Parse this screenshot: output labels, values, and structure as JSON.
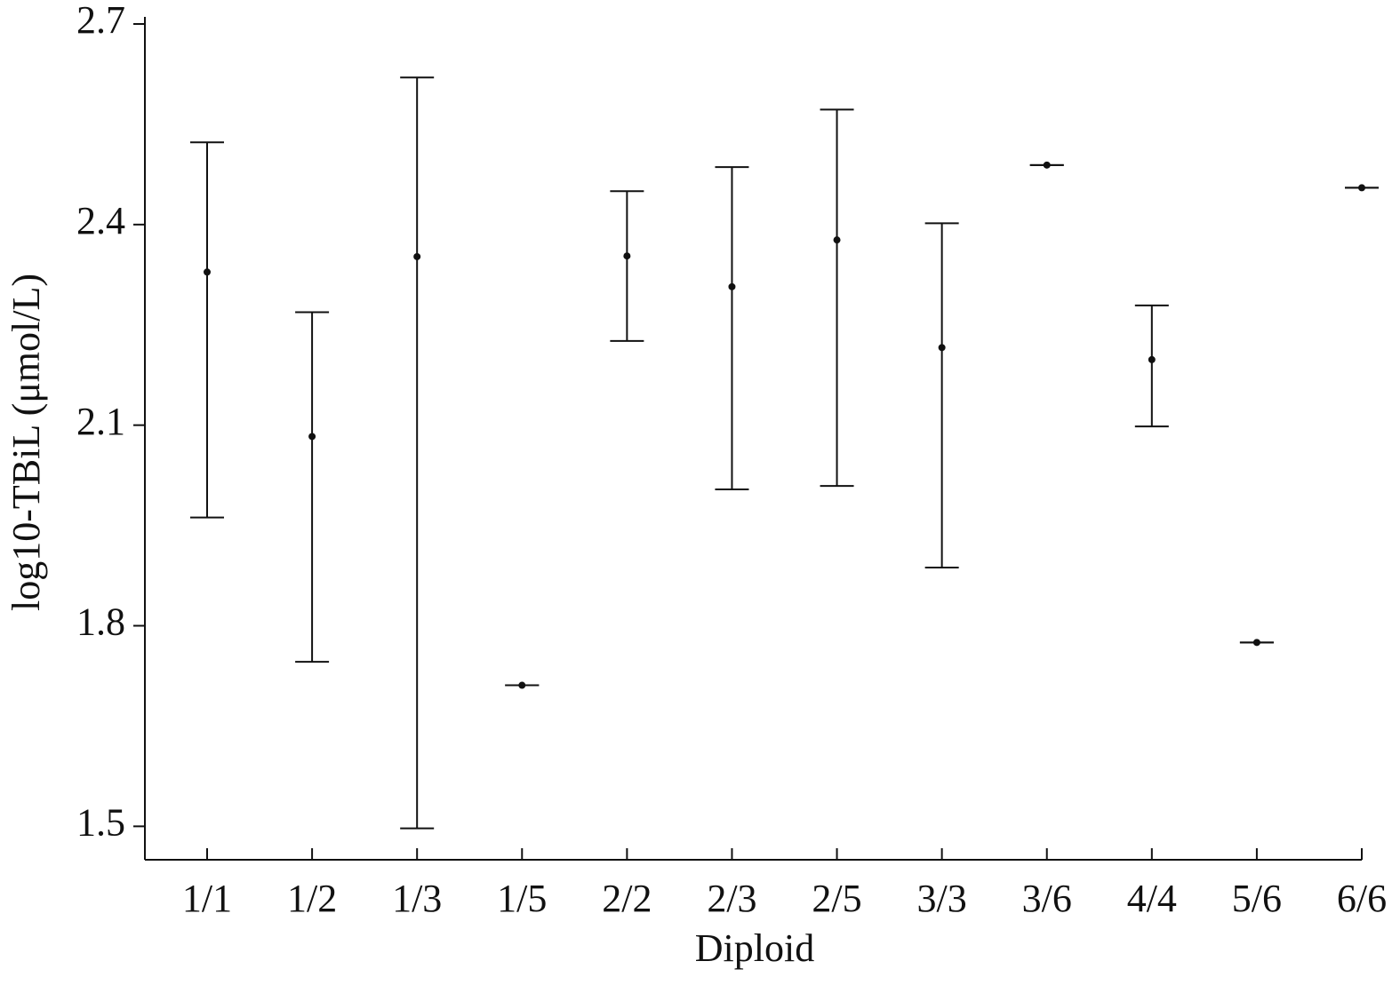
{
  "chart_data": {
    "type": "errorbar",
    "x_label": "Diploid",
    "y_label": "log10-TBiL (μmol/L)",
    "categories": [
      "1/1",
      "1/2",
      "1/3",
      "1/5",
      "2/2",
      "2/3",
      "2/5",
      "3/3",
      "3/6",
      "4/4",
      "5/6",
      "6/6"
    ],
    "values": [
      2.329,
      2.083,
      2.352,
      1.711,
      2.353,
      2.307,
      2.377,
      2.216,
      2.489,
      2.198,
      1.775,
      2.455
    ],
    "lower": [
      1.962,
      1.746,
      1.497,
      1.711,
      2.226,
      2.004,
      2.009,
      1.887,
      2.489,
      2.098,
      1.775,
      2.455
    ],
    "upper": [
      2.523,
      2.269,
      2.62,
      1.711,
      2.45,
      2.486,
      2.572,
      2.402,
      2.489,
      2.279,
      1.775,
      2.455
    ],
    "color": "#111111",
    "ylim": [
      1.45,
      2.7
    ],
    "yticks": [
      {
        "value": 1.5,
        "label": "1.5"
      },
      {
        "value": 1.8,
        "label": "1.8"
      },
      {
        "value": 2.1,
        "label": "2.1"
      },
      {
        "value": 2.4,
        "label": "2.4"
      },
      {
        "value": 2.7,
        "label": "2.7"
      }
    ],
    "grid": false
  }
}
